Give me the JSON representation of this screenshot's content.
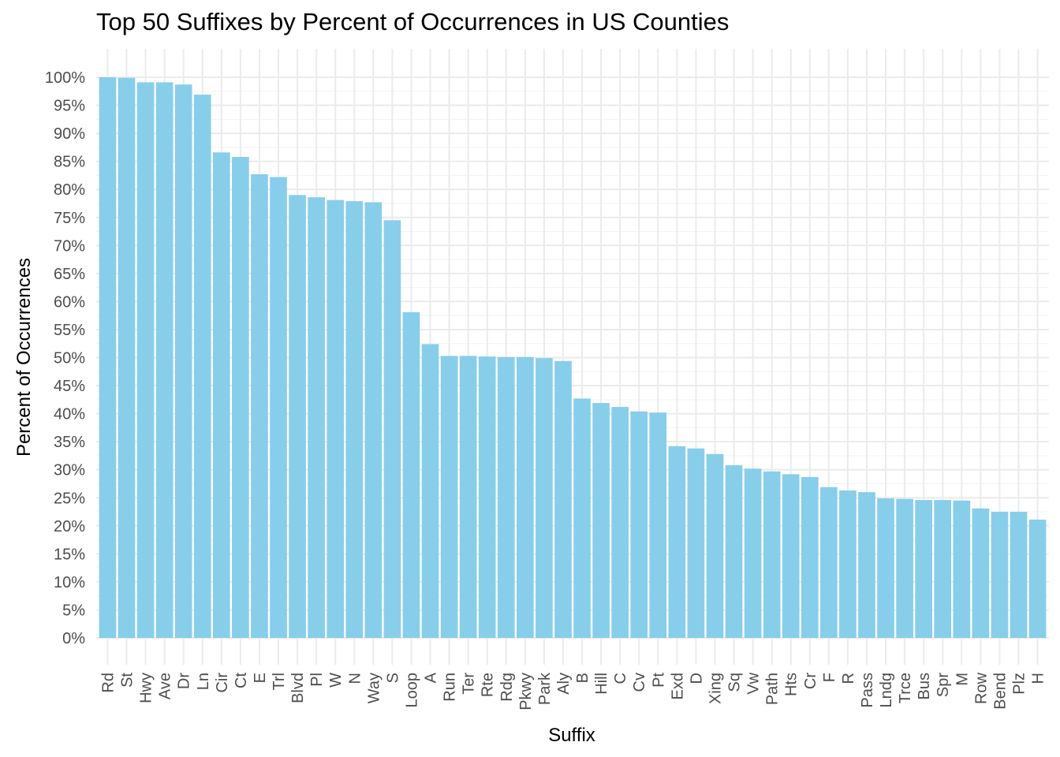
{
  "chart_data": {
    "type": "bar",
    "title": "Top 50 Suffixes by Percent of Occurrences in US Counties",
    "xlabel": "Suffix",
    "ylabel": "Percent of Occurrences",
    "ylim": [
      0,
      100
    ],
    "yticks": [
      0,
      5,
      10,
      15,
      20,
      25,
      30,
      35,
      40,
      45,
      50,
      55,
      60,
      65,
      70,
      75,
      80,
      85,
      90,
      95,
      100
    ],
    "ytick_labels": [
      "0%",
      "5%",
      "10%",
      "15%",
      "20%",
      "25%",
      "30%",
      "35%",
      "40%",
      "45%",
      "50%",
      "55%",
      "60%",
      "65%",
      "70%",
      "75%",
      "80%",
      "85%",
      "90%",
      "95%",
      "100%"
    ],
    "grid": true,
    "bar_color": "#87ceeb",
    "categories": [
      "Rd",
      "St",
      "Hwy",
      "Ave",
      "Dr",
      "Ln",
      "Cir",
      "Ct",
      "E",
      "Trl",
      "Blvd",
      "Pl",
      "W",
      "N",
      "Way",
      "S",
      "Loop",
      "A",
      "Run",
      "Ter",
      "Rte",
      "Rdg",
      "Pkwy",
      "Park",
      "Aly",
      "B",
      "Hill",
      "C",
      "Cv",
      "Pt",
      "Exd",
      "D",
      "Xing",
      "Sq",
      "Vw",
      "Path",
      "Hts",
      "Cr",
      "F",
      "R",
      "Pass",
      "Lndg",
      "Trce",
      "Bus",
      "Spr",
      "M",
      "Row",
      "Bend",
      "Plz",
      "H"
    ],
    "values": [
      100.0,
      99.9,
      99.1,
      99.1,
      98.7,
      96.9,
      86.6,
      85.8,
      82.7,
      82.2,
      79.0,
      78.6,
      78.1,
      77.9,
      77.7,
      74.5,
      58.1,
      52.4,
      50.3,
      50.3,
      50.2,
      50.1,
      50.1,
      49.9,
      49.4,
      42.7,
      41.9,
      41.2,
      40.4,
      40.2,
      34.2,
      33.8,
      32.8,
      30.8,
      30.2,
      29.7,
      29.2,
      28.7,
      26.9,
      26.3,
      26.0,
      24.9,
      24.8,
      24.6,
      24.6,
      24.5,
      23.1,
      22.5,
      22.5,
      21.1
    ]
  }
}
